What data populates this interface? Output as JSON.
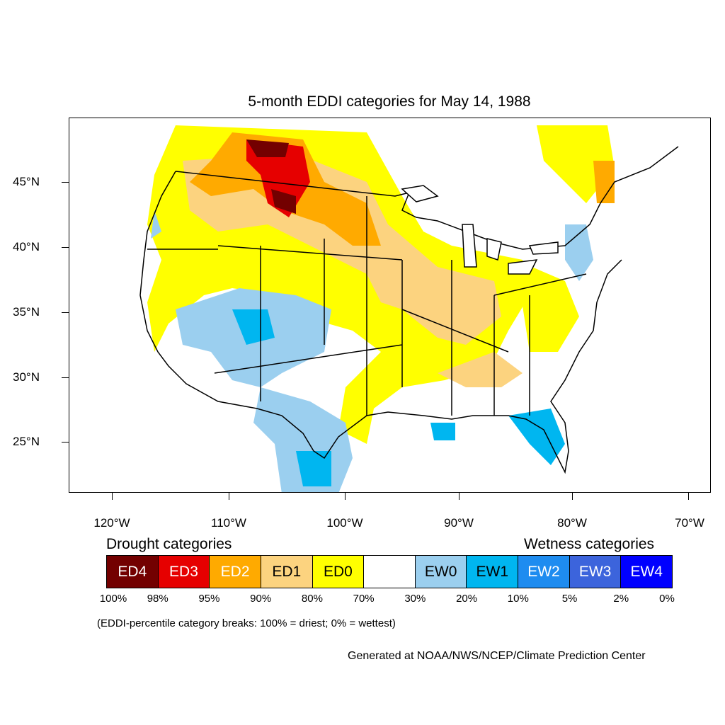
{
  "title": "5-month EDDI categories for May 14, 1988",
  "latitude_labels": [
    "45°N",
    "40°N",
    "35°N",
    "30°N",
    "25°N"
  ],
  "longitude_labels": [
    "120°W",
    "110°W",
    "100°W",
    "90°W",
    "80°W",
    "70°W"
  ],
  "legend": {
    "drought_heading": "Drought categories",
    "wetness_heading": "Wetness categories",
    "categories": [
      {
        "label": "ED4",
        "color": "#730000",
        "text_color": "#ffffff"
      },
      {
        "label": "ED3",
        "color": "#e60000",
        "text_color": "#ffffff"
      },
      {
        "label": "ED2",
        "color": "#ffaa00",
        "text_color": "#ffffff"
      },
      {
        "label": "ED1",
        "color": "#fcd37f",
        "text_color": "#000000"
      },
      {
        "label": "ED0",
        "color": "#ffff00",
        "text_color": "#000000"
      },
      {
        "label": "",
        "color": "#ffffff",
        "text_color": "#000000"
      },
      {
        "label": "EW0",
        "color": "#9bcfef",
        "text_color": "#000000"
      },
      {
        "label": "EW1",
        "color": "#00b6f0",
        "text_color": "#000000"
      },
      {
        "label": "EW2",
        "color": "#1e8cf0",
        "text_color": "#ffffff"
      },
      {
        "label": "EW3",
        "color": "#3c64dc",
        "text_color": "#ffffff"
      },
      {
        "label": "EW4",
        "color": "#0000ff",
        "text_color": "#ffffff"
      }
    ],
    "percentiles": [
      "100%",
      "98%",
      "95%",
      "90%",
      "80%",
      "70%",
      "30%",
      "20%",
      "10%",
      "5%",
      "2%",
      "0%"
    ]
  },
  "note": "(EDDI-percentile category breaks: 100% = driest; 0% = wettest)",
  "credit": "Generated at NOAA/NWS/NCEP/Climate Prediction Center"
}
